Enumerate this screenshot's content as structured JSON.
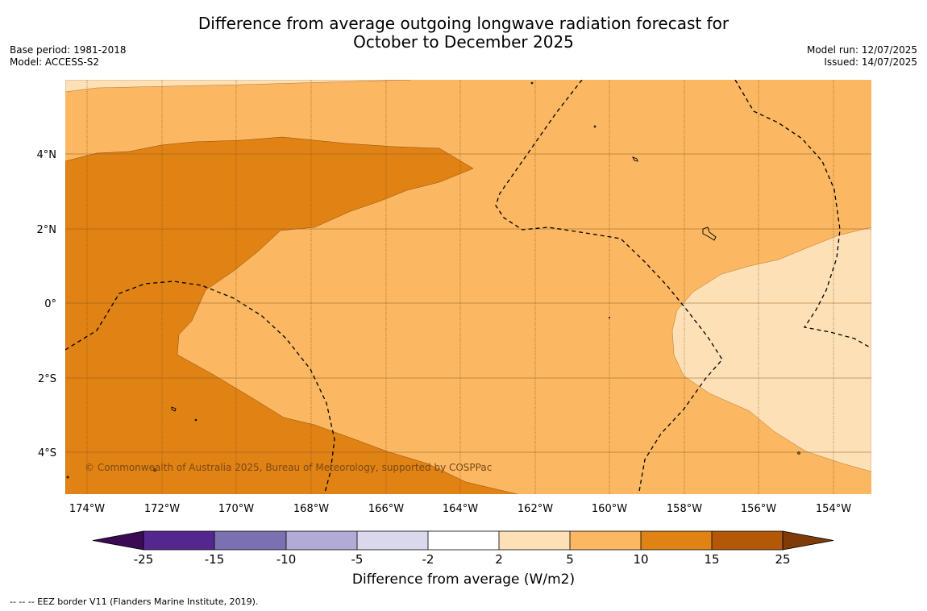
{
  "title": {
    "line1": "Difference from average outgoing longwave radiation forecast for",
    "line2": "October to December 2025"
  },
  "meta_left": {
    "base_period": "Base period: 1981-2018",
    "model": "Model: ACCESS-S2"
  },
  "meta_right": {
    "model_run": "Model run: 12/07/2025",
    "issued": "Issued: 14/07/2025"
  },
  "map": {
    "lon_labels": [
      "174°W",
      "172°W",
      "170°W",
      "168°W",
      "166°W",
      "164°W",
      "162°W",
      "160°W",
      "158°W",
      "156°W",
      "154°W"
    ],
    "lat_labels": [
      "4°N",
      "2°N",
      "0°",
      "2°S",
      "4°S"
    ],
    "copyright": "© Commonwealth of Australia 2025, Bureau of Meteorology, supported by COSPPac"
  },
  "colorbar": {
    "title": "Difference from average (W/m2)",
    "tick_labels": [
      "-25",
      "-15",
      "-10",
      "-5",
      "-2",
      "2",
      "5",
      "10",
      "15",
      "25"
    ],
    "colors": {
      "lt_minus25": "#3b0a55",
      "minus25_minus15": "#54278f",
      "minus15_minus10": "#7b70b0",
      "minus10_minus5": "#b2abd5",
      "minus5_minus2": "#d9d8ec",
      "minus2_2": "#ffffff",
      "2_5": "#fee0b6",
      "5_10": "#fbb761",
      "10_15": "#e08214",
      "15_25": "#b35806",
      "gt_25": "#7f3b08"
    }
  },
  "footer": {
    "eez_note": "--  --  -- EEZ border V11 (Flanders Marine Institute, 2019)."
  }
}
